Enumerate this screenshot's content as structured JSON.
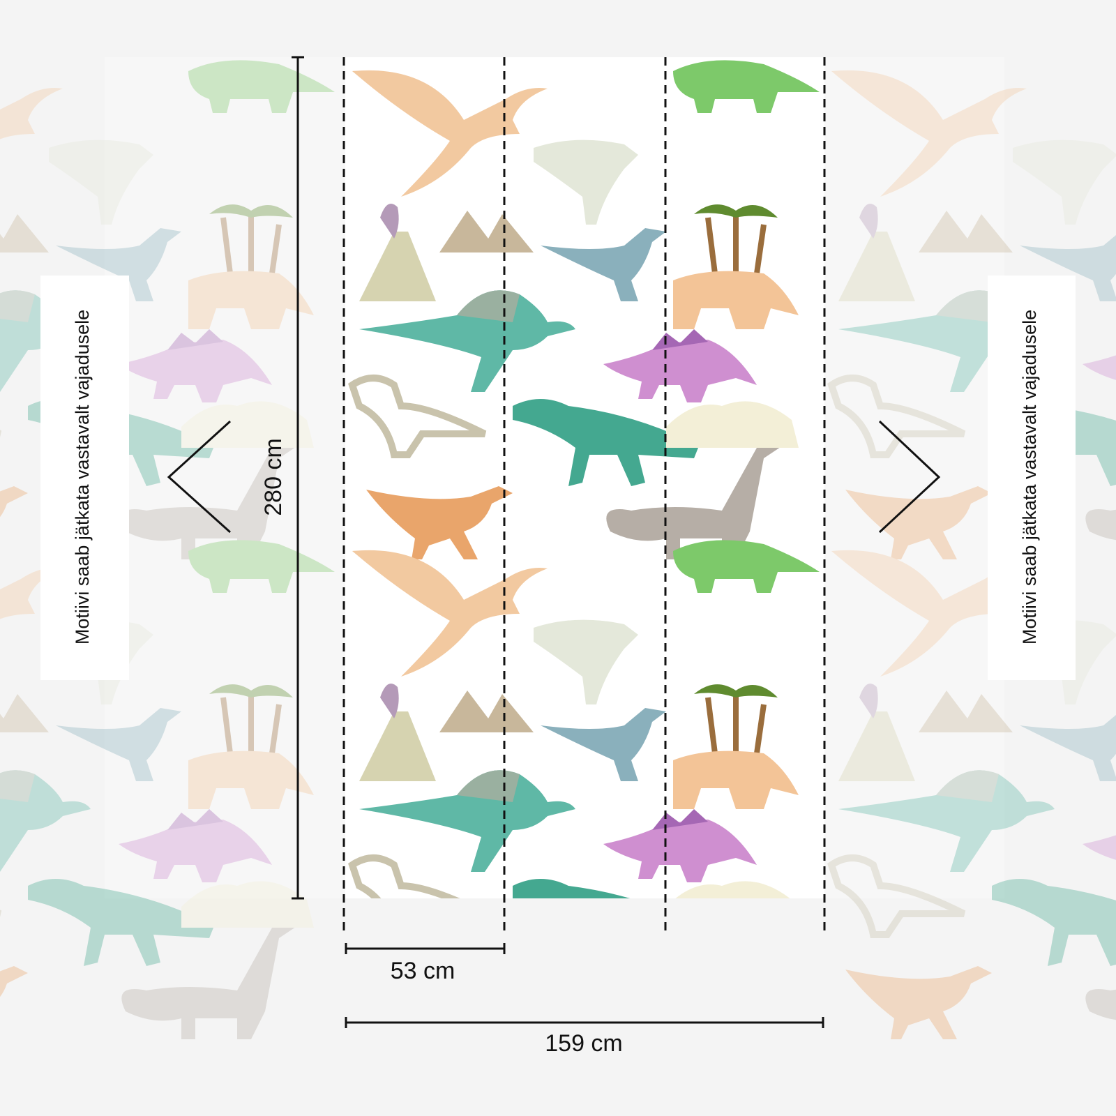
{
  "dimensions": {
    "height": "280 cm",
    "strip_width": "53 cm",
    "total_width": "159 cm"
  },
  "side_notes": [
    "Motiivi saab jätkata vastavalt vajadusele",
    "Motiivi saab jätkata vastavalt vajadusele"
  ]
}
